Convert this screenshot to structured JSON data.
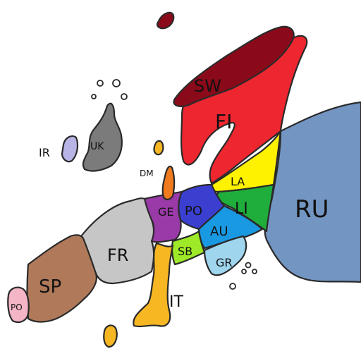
{
  "map": {
    "regions": [
      {
        "id": "ru",
        "label": "RU",
        "color": "#7395c2"
      },
      {
        "id": "fi",
        "label": "FI",
        "color": "#ee2630"
      },
      {
        "id": "sw",
        "label": "SW",
        "color": "#8b0a1a"
      },
      {
        "id": "la",
        "label": "LA",
        "color": "#fff200"
      },
      {
        "id": "li",
        "label": "LI",
        "color": "#1fae3c"
      },
      {
        "id": "po",
        "label": "PO",
        "color": "#3a3fd0"
      },
      {
        "id": "ge",
        "label": "GE",
        "color": "#9a3aa8"
      },
      {
        "id": "au",
        "label": "AU",
        "color": "#1a99e3"
      },
      {
        "id": "gr",
        "label": "GR",
        "color": "#9fd6ee"
      },
      {
        "id": "sb",
        "label": "SB",
        "color": "#9fea28"
      },
      {
        "id": "it",
        "label": "IT",
        "color": "#f7b722"
      },
      {
        "id": "fr",
        "label": "FR",
        "color": "#c6c6c6"
      },
      {
        "id": "sp",
        "label": "SP",
        "color": "#b07a5a"
      },
      {
        "id": "pt",
        "label": "PO",
        "color": "#f4b6c6"
      },
      {
        "id": "uk",
        "label": "UK",
        "color": "#7b7b7b"
      },
      {
        "id": "ir",
        "label": "IR",
        "color": "#b8b4e6"
      },
      {
        "id": "dm",
        "label": "DM",
        "color": "#f07a1e"
      }
    ]
  }
}
